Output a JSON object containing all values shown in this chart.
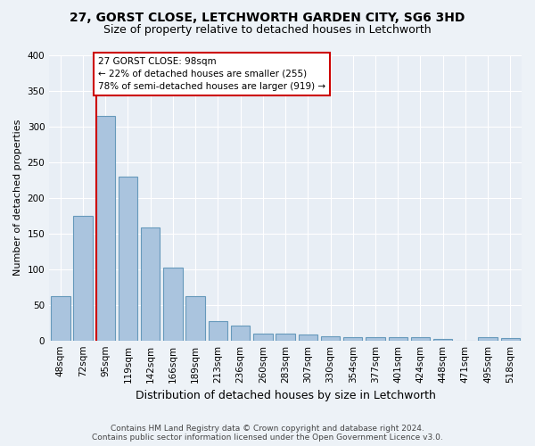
{
  "title_line1": "27, GORST CLOSE, LETCHWORTH GARDEN CITY, SG6 3HD",
  "title_line2": "Size of property relative to detached houses in Letchworth",
  "xlabel": "Distribution of detached houses by size in Letchworth",
  "ylabel": "Number of detached properties",
  "bar_color": "#aac4de",
  "bar_edge_color": "#6699bb",
  "categories": [
    "48sqm",
    "72sqm",
    "95sqm",
    "119sqm",
    "142sqm",
    "166sqm",
    "189sqm",
    "213sqm",
    "236sqm",
    "260sqm",
    "283sqm",
    "307sqm",
    "330sqm",
    "354sqm",
    "377sqm",
    "401sqm",
    "424sqm",
    "448sqm",
    "471sqm",
    "495sqm",
    "518sqm"
  ],
  "values": [
    62,
    175,
    315,
    230,
    158,
    102,
    62,
    27,
    21,
    10,
    10,
    8,
    6,
    4,
    4,
    4,
    4,
    2,
    0,
    4,
    3
  ],
  "ylim": [
    0,
    400
  ],
  "yticks": [
    0,
    50,
    100,
    150,
    200,
    250,
    300,
    350,
    400
  ],
  "annotation_line1": "27 GORST CLOSE: 98sqm",
  "annotation_line2": "← 22% of detached houses are smaller (255)",
  "annotation_line3": "78% of semi-detached houses are larger (919) →",
  "vline_x_bar_index": 2,
  "vline_color": "#cc0000",
  "box_color": "#cc0000",
  "footer_line1": "Contains HM Land Registry data © Crown copyright and database right 2024.",
  "footer_line2": "Contains public sector information licensed under the Open Government Licence v3.0.",
  "bg_color": "#edf2f7",
  "plot_bg_color": "#e8eef5",
  "grid_color": "#ffffff",
  "title1_fontsize": 10,
  "title2_fontsize": 9,
  "ylabel_fontsize": 8,
  "xlabel_fontsize": 9,
  "tick_fontsize": 7.5,
  "footer_fontsize": 6.5
}
